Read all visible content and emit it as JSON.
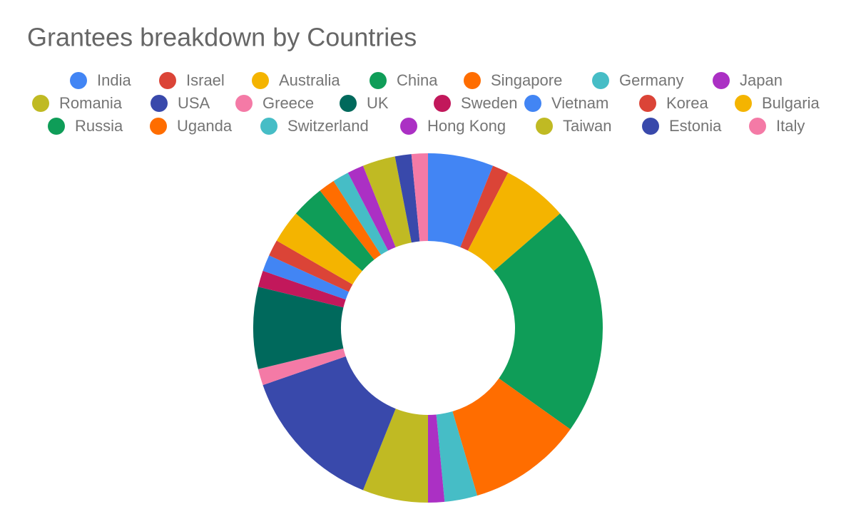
{
  "chart_data": {
    "type": "donut",
    "title": "Grantees breakdown by Countries",
    "categories": [
      "India",
      "Israel",
      "Australia",
      "China",
      "Singapore",
      "Germany",
      "Japan",
      "Romania",
      "USA",
      "Greece",
      "UK",
      "Sweden",
      "Vietnam",
      "Korea",
      "Bulgaria",
      "Russia",
      "Uganda",
      "Switzerland",
      "Hong Kong",
      "Taiwan",
      "Estonia",
      "Italy"
    ],
    "values": [
      4,
      1,
      4,
      14,
      7,
      2,
      1,
      4,
      9,
      1,
      5,
      1,
      1,
      1,
      2,
      2,
      1,
      1,
      1,
      2,
      1,
      1
    ],
    "colors": [
      "#4285f4",
      "#db4437",
      "#f4b400",
      "#0f9d58",
      "#ff6d00",
      "#46bdc6",
      "#ab30c4",
      "#c0ba23",
      "#3949ab",
      "#f47aa6",
      "#00695c",
      "#c2185b",
      "#4285f4",
      "#db4437",
      "#f4b400",
      "#0f9d58",
      "#ff6d00",
      "#46bdc6",
      "#ab30c4",
      "#c0ba23",
      "#3949ab",
      "#f47aa6"
    ],
    "legend": "top"
  }
}
